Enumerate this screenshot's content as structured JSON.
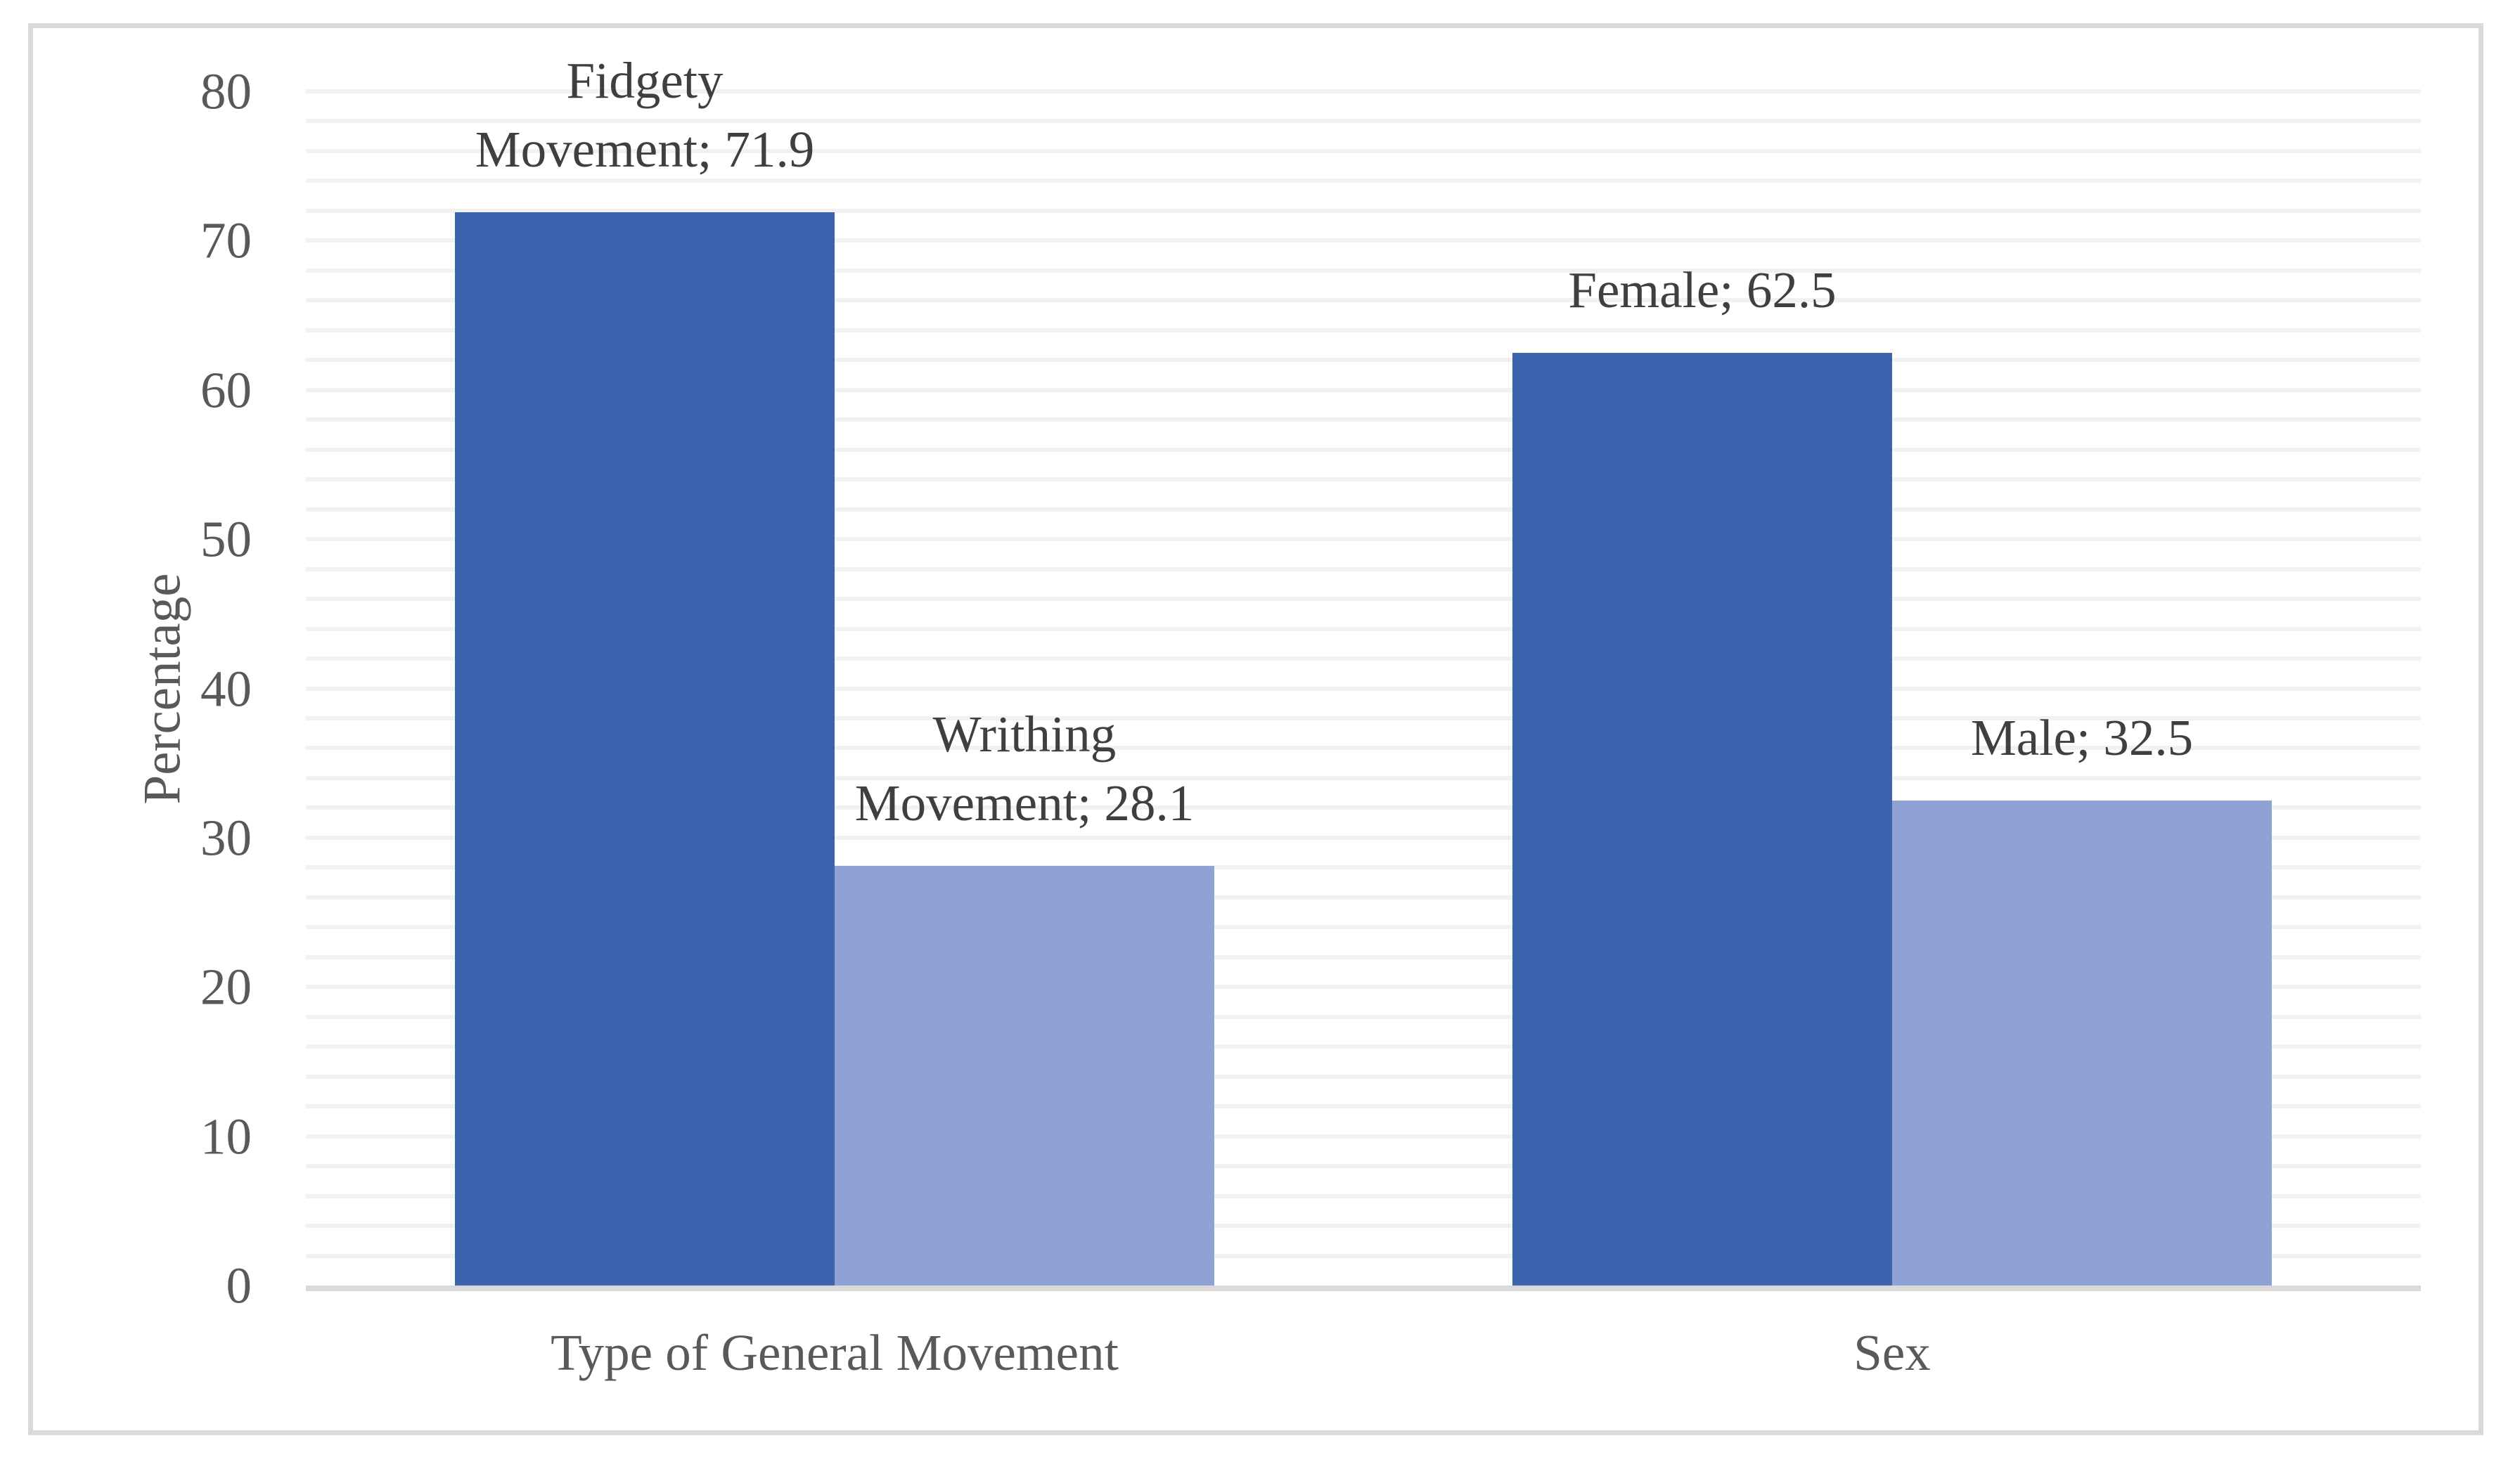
{
  "chart_data": {
    "type": "bar",
    "title": "",
    "xlabel": "",
    "ylabel": "Percentage",
    "ylim": [
      0,
      80
    ],
    "yticks": [
      0,
      10,
      20,
      30,
      40,
      50,
      60,
      70,
      80
    ],
    "minor_grid_step": 2,
    "grid": "horizontal-minor",
    "legend": "none",
    "categories": [
      "Type of General Movement",
      "Sex"
    ],
    "groups": [
      {
        "category": "Type of General Movement",
        "bars": [
          {
            "name": "Fidgety Movement",
            "value": 71.9,
            "label_lines": [
              "Fidgety",
              "Movement; 71.9"
            ],
            "color": "#3C63AD"
          },
          {
            "name": "Writhing Movement",
            "value": 28.1,
            "label_lines": [
              "Writhing",
              "Movement; 28.1"
            ],
            "color": "#8FA1D5"
          }
        ]
      },
      {
        "category": "Sex",
        "bars": [
          {
            "name": "Female",
            "value": 62.5,
            "label_lines": [
              "Female; 62.5"
            ],
            "color": "#3C63AD"
          },
          {
            "name": "Male",
            "value": 32.5,
            "label_lines": [
              "Male; 32.5"
            ],
            "color": "#8FA1D5"
          }
        ]
      }
    ],
    "colors": {
      "dark_blue": "#3C63AD",
      "light_blue": "#8FA1D5",
      "tick_text": "#595959",
      "data_label_text": "#3F3F3F",
      "gridline": "#F1F1F1",
      "axis_line": "#D9D9D9",
      "border": "#D9D9D9"
    }
  }
}
